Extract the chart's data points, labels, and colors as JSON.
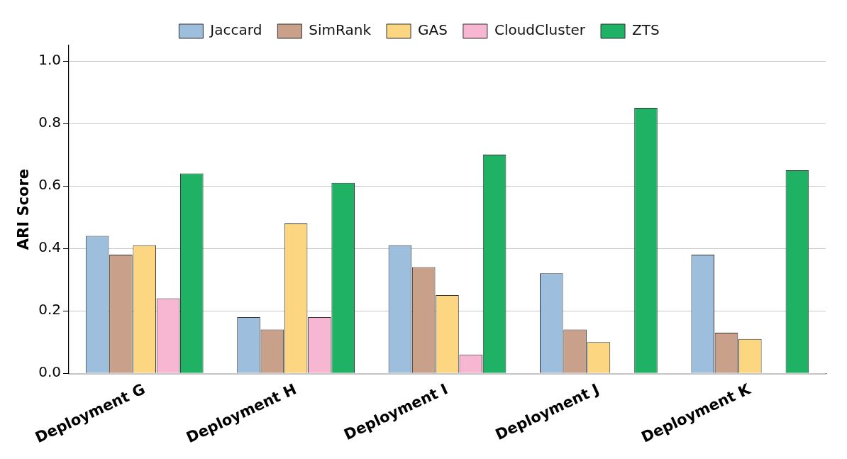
{
  "chart_data": {
    "type": "bar",
    "ylabel": "ARI Score",
    "categories": [
      "Deployment G",
      "Deployment H",
      "Deployment I",
      "Deployment J",
      "Deployment K"
    ],
    "series": [
      {
        "name": "Jaccard",
        "color": "#9dbfdd",
        "values": [
          0.44,
          0.18,
          0.41,
          0.32,
          0.38
        ]
      },
      {
        "name": "SimRank",
        "color": "#c9a08a",
        "values": [
          0.38,
          0.14,
          0.34,
          0.14,
          0.13
        ]
      },
      {
        "name": "GAS",
        "color": "#fdd682",
        "values": [
          0.41,
          0.48,
          0.25,
          0.1,
          0.11
        ]
      },
      {
        "name": "CloudCluster",
        "color": "#f7b6d2",
        "values": [
          0.24,
          0.18,
          0.06,
          0,
          0
        ]
      },
      {
        "name": "ZTS",
        "color": "#1fb264",
        "values": [
          0.64,
          0.61,
          0.7,
          0.85,
          0.65
        ]
      }
    ],
    "ylim": [
      0,
      1.05
    ],
    "yticks": [
      {
        "value": 0,
        "label": "0.0"
      },
      {
        "value": 0.2,
        "label": "0.2"
      },
      {
        "value": 0.4,
        "label": "0.4"
      },
      {
        "value": 0.6,
        "label": "0.6"
      },
      {
        "value": 0.8,
        "label": "0.8"
      },
      {
        "value": 1,
        "label": "1.0"
      }
    ],
    "grid": "y",
    "legend": "top"
  }
}
